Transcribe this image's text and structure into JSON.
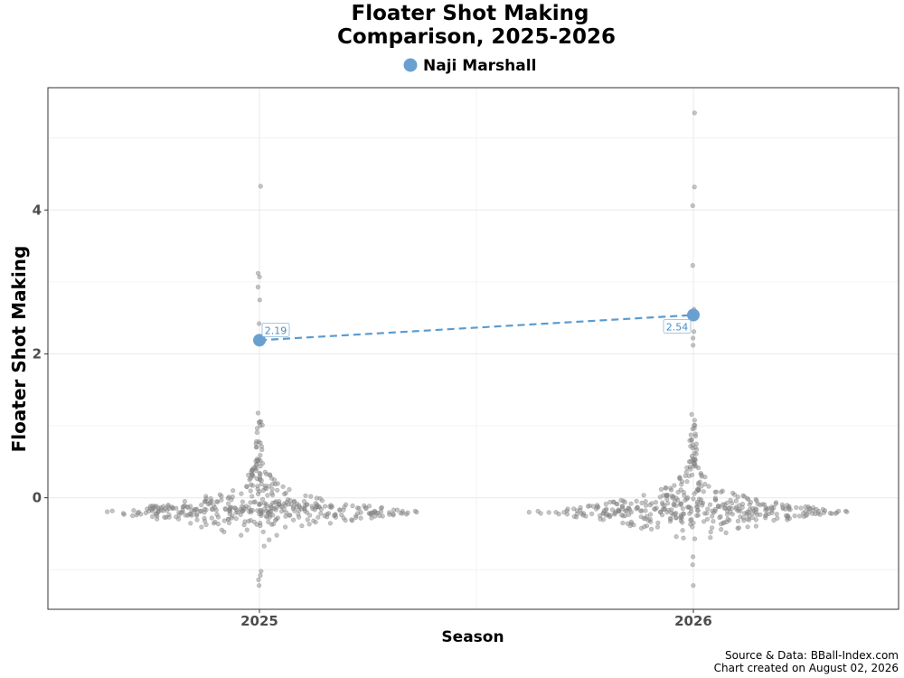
{
  "chart_data": {
    "type": "scatter",
    "title_lines": [
      "Floater Shot Making",
      "Comparison, 2025-2026"
    ],
    "xlabel": "Season",
    "ylabel": "Floater Shot Making",
    "categories": [
      "2025",
      "2026"
    ],
    "y_ticks": [
      0,
      2,
      4
    ],
    "ylim": [
      -1.55,
      5.7
    ],
    "grid": true,
    "legend": {
      "placement": "top-center",
      "entries": [
        "Naji Marshall"
      ]
    },
    "highlight_series": {
      "name": "Naji Marshall",
      "color": "#6aa0d0",
      "line_color": "#5b9bd0",
      "points": [
        {
          "x": "2025",
          "y": 2.19,
          "label": "2.19"
        },
        {
          "x": "2026",
          "y": 2.54,
          "label": "2.54"
        }
      ]
    },
    "background_outliers": {
      "2025": [
        4.33,
        3.12,
        3.07,
        2.93,
        2.75,
        2.42,
        -1.02,
        -1.08,
        -1.14,
        -1.22
      ],
      "2026": [
        5.35,
        4.32,
        4.06,
        3.23,
        2.62,
        2.31,
        2.22,
        2.12,
        -0.82,
        -0.93,
        -1.22
      ]
    },
    "caption_lines": [
      "Source & Data: BBall-Index.com",
      "Chart created on August 02, 2026"
    ]
  },
  "colors": {
    "background_points": "#8c8c8c",
    "grid": "#ebebeb",
    "panel_border": "#333333"
  }
}
